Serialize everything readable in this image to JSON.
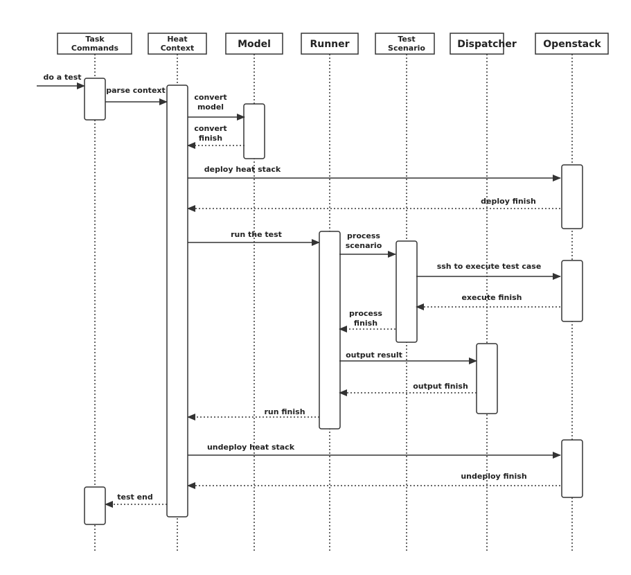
{
  "participants": [
    {
      "id": "task-commands",
      "lines": [
        "Task",
        "Commands"
      ]
    },
    {
      "id": "heat-context",
      "lines": [
        "Heat",
        "Context"
      ]
    },
    {
      "id": "model",
      "lines": [
        "Model"
      ]
    },
    {
      "id": "runner",
      "lines": [
        "Runner"
      ]
    },
    {
      "id": "test-scenario",
      "lines": [
        "Test",
        "Scenario"
      ]
    },
    {
      "id": "dispatcher",
      "lines": [
        "Dispatcher"
      ]
    },
    {
      "id": "openstack",
      "lines": [
        "Openstack"
      ]
    }
  ],
  "messages": [
    {
      "lines": [
        "do a test"
      ],
      "from": null,
      "to": "task-commands",
      "style": "solid"
    },
    {
      "lines": [
        "parse context"
      ],
      "from": "task-commands",
      "to": "heat-context",
      "style": "solid"
    },
    {
      "lines": [
        "convert",
        "model"
      ],
      "from": "heat-context",
      "to": "model",
      "style": "solid"
    },
    {
      "lines": [
        "convert",
        "finish"
      ],
      "from": "model",
      "to": "heat-context",
      "style": "dotted"
    },
    {
      "lines": [
        "deploy heat stack"
      ],
      "from": "heat-context",
      "to": "openstack",
      "style": "solid"
    },
    {
      "lines": [
        "deploy finish"
      ],
      "from": "openstack",
      "to": "heat-context",
      "style": "dotted"
    },
    {
      "lines": [
        "run the test"
      ],
      "from": "heat-context",
      "to": "runner",
      "style": "solid"
    },
    {
      "lines": [
        "process",
        "scenario"
      ],
      "from": "runner",
      "to": "test-scenario",
      "style": "solid"
    },
    {
      "lines": [
        "ssh to execute test case"
      ],
      "from": "test-scenario",
      "to": "openstack",
      "style": "solid"
    },
    {
      "lines": [
        "execute finish"
      ],
      "from": "openstack",
      "to": "test-scenario",
      "style": "dotted"
    },
    {
      "lines": [
        "process",
        "finish"
      ],
      "from": "test-scenario",
      "to": "runner",
      "style": "dotted"
    },
    {
      "lines": [
        "output result"
      ],
      "from": "runner",
      "to": "dispatcher",
      "style": "solid"
    },
    {
      "lines": [
        "output finish"
      ],
      "from": "dispatcher",
      "to": "runner",
      "style": "dotted"
    },
    {
      "lines": [
        "run finish"
      ],
      "from": "runner",
      "to": "heat-context",
      "style": "dotted"
    },
    {
      "lines": [
        "undeploy heat stack"
      ],
      "from": "heat-context",
      "to": "openstack",
      "style": "solid"
    },
    {
      "lines": [
        "undeploy finish"
      ],
      "from": "openstack",
      "to": "heat-context",
      "style": "dotted"
    },
    {
      "lines": [
        "test end"
      ],
      "from": "heat-context",
      "to": "task-commands",
      "style": "dotted"
    }
  ],
  "colors": {
    "line": "#333333",
    "background": "#ffffff"
  }
}
